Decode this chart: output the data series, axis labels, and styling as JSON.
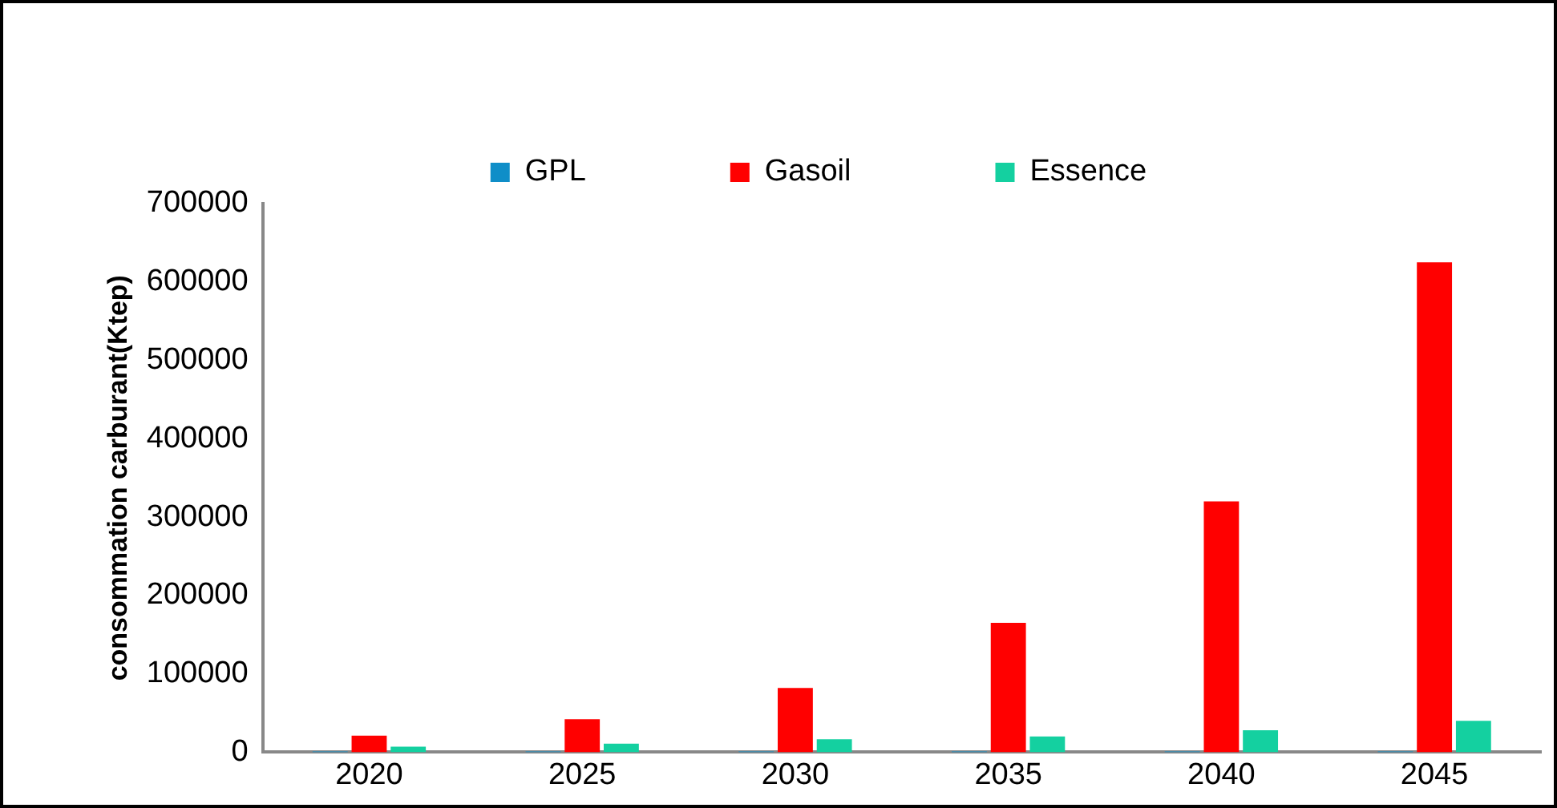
{
  "chart_data": {
    "type": "bar",
    "ylabel": "consommation carburant(Ktep)",
    "categories": [
      "2020",
      "2025",
      "2030",
      "2035",
      "2040",
      "2045"
    ],
    "series": [
      {
        "name": "GPL",
        "color": "#0f8ec8",
        "values": [
          1000,
          1000,
          1000,
          1000,
          1000,
          1000
        ]
      },
      {
        "name": "Gasoil",
        "color": "#ff0000",
        "values": [
          21000,
          42000,
          82000,
          165000,
          320000,
          625000
        ]
      },
      {
        "name": "Essence",
        "color": "#14d0a0",
        "values": [
          7000,
          11000,
          16500,
          20000,
          28000,
          40000
        ]
      }
    ],
    "ylim": [
      0,
      700000
    ],
    "yticks": [
      0,
      100000,
      200000,
      300000,
      400000,
      500000,
      600000,
      700000
    ],
    "grid": false,
    "legend": "top"
  }
}
